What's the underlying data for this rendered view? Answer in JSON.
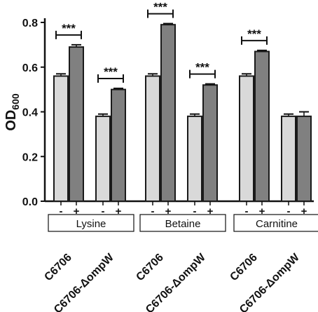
{
  "chart_data": {
    "type": "bar",
    "ylabel": "OD",
    "ylabel_sub": "600",
    "ylim": [
      0,
      0.8
    ],
    "yticks": [
      "0.0",
      "0.2",
      "0.4",
      "0.6",
      "0.8"
    ],
    "grid": false,
    "legend": "none",
    "colors": {
      "minus": "#d9d9d9",
      "plus": "#808080",
      "edge": "#1a1a1a"
    },
    "sign_labels": [
      "-",
      "+"
    ],
    "groups": [
      {
        "label": "Lysine",
        "strains": [
          {
            "name": "C6706",
            "minus": 0.56,
            "plus": 0.69,
            "minus_err": 0.01,
            "plus_err": 0.01,
            "sig": "***"
          },
          {
            "name": "C6706-ΔompW",
            "minus": 0.38,
            "plus": 0.5,
            "minus_err": 0.01,
            "plus_err": 0.005,
            "sig": "***"
          }
        ]
      },
      {
        "label": "Betaine",
        "strains": [
          {
            "name": "C6706",
            "minus": 0.56,
            "plus": 0.79,
            "minus_err": 0.01,
            "plus_err": 0.005,
            "sig": "***"
          },
          {
            "name": "C6706-ΔompW",
            "minus": 0.38,
            "plus": 0.52,
            "minus_err": 0.01,
            "plus_err": 0.005,
            "sig": "***"
          }
        ]
      },
      {
        "label": "Carnitine",
        "strains": [
          {
            "name": "C6706",
            "minus": 0.56,
            "plus": 0.67,
            "minus_err": 0.01,
            "plus_err": 0.005,
            "sig": "***"
          },
          {
            "name": "C6706-ΔompW",
            "minus": 0.38,
            "plus": 0.38,
            "minus_err": 0.01,
            "plus_err": 0.02,
            "sig": ""
          }
        ]
      }
    ]
  }
}
